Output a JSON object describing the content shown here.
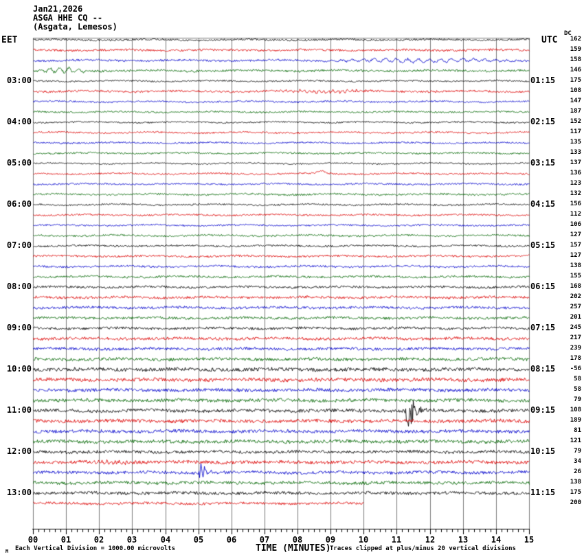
{
  "header": {
    "date": "Jan21,2026",
    "station": "ASGA HHE CQ --",
    "location": "(Asgata, Lemesos)"
  },
  "axes": {
    "left_label": "EET",
    "right_label": "UTC",
    "dc_label": "DC"
  },
  "footer": {
    "corner_mark": "M",
    "scale_note": "Each Vertical Division = 1000.00 microvolts",
    "axis_title": "TIME (MINUTES)",
    "clip_note": "Traces clipped at plus/minus 20 vertical divisions"
  },
  "chart_data": {
    "type": "line",
    "subtype": "helicorder-seismogram",
    "title": "ASGA HHE CQ --",
    "date": "Jan21,2026",
    "station_location": "(Asgata, Lemesos)",
    "xlabel": "TIME (MINUTES)",
    "x_range": [
      0,
      15
    ],
    "minutes_per_line": 15,
    "x_tick_labels": [
      "00",
      "01",
      "02",
      "03",
      "04",
      "05",
      "06",
      "07",
      "08",
      "09",
      "10",
      "11",
      "12",
      "13",
      "14",
      "15"
    ],
    "minor_ticks_per_interval": 5,
    "left_time_axis": "EET",
    "right_time_axis": "UTC",
    "trace_color_cycle": [
      "black",
      "red",
      "blue",
      "green"
    ],
    "palette": {
      "black": "#000000",
      "red": "#dd0000",
      "blue": "#0000cc",
      "green": "#006600",
      "grid": "#7a7a7a",
      "axis": "#000000"
    },
    "notes": [
      "Each Vertical Division = 1000.00 microvolts",
      "Traces clipped at plus/minus 20 vertical divisions"
    ],
    "traces": [
      {
        "eet": "",
        "utc": "",
        "dc": 162,
        "color": "black",
        "noise": 1.3,
        "events": []
      },
      {
        "eet": "",
        "utc": "",
        "dc": 159,
        "color": "red",
        "noise": 1.6,
        "events": []
      },
      {
        "eet": "",
        "utc": "",
        "dc": 158,
        "color": "blue",
        "noise": 1.4,
        "events": [
          {
            "type": "wave",
            "start": 8.3,
            "end": 14.9,
            "amp": 3.5,
            "freq": 3
          }
        ]
      },
      {
        "eet": "",
        "utc": "",
        "dc": 146,
        "color": "green",
        "noise": 1.6,
        "events": [
          {
            "type": "wave",
            "start": 0.05,
            "end": 1.8,
            "amp": 4.5,
            "freq": 3.5
          }
        ]
      },
      {
        "eet": "03:00",
        "utc": "01:15",
        "dc": 175,
        "color": "black",
        "noise": 1.1,
        "events": []
      },
      {
        "eet": "",
        "utc": "",
        "dc": 108,
        "color": "red",
        "noise": 1.5,
        "events": [
          {
            "type": "wave",
            "start": 6.9,
            "end": 10.6,
            "amp": 2.6,
            "freq": 7
          }
        ]
      },
      {
        "eet": "",
        "utc": "",
        "dc": 147,
        "color": "blue",
        "noise": 1.2,
        "events": []
      },
      {
        "eet": "",
        "utc": "",
        "dc": 187,
        "color": "green",
        "noise": 1.2,
        "events": []
      },
      {
        "eet": "04:00",
        "utc": "02:15",
        "dc": 152,
        "color": "black",
        "noise": 1.1,
        "events": []
      },
      {
        "eet": "",
        "utc": "",
        "dc": 117,
        "color": "red",
        "noise": 1.2,
        "events": []
      },
      {
        "eet": "",
        "utc": "",
        "dc": 135,
        "color": "blue",
        "noise": 1.2,
        "events": []
      },
      {
        "eet": "",
        "utc": "",
        "dc": 133,
        "color": "green",
        "noise": 1.2,
        "events": []
      },
      {
        "eet": "05:00",
        "utc": "03:15",
        "dc": 137,
        "color": "black",
        "noise": 1.0,
        "events": []
      },
      {
        "eet": "",
        "utc": "",
        "dc": 136,
        "color": "red",
        "noise": 1.2,
        "events": [
          {
            "type": "bump",
            "at": 8.7,
            "amp": 4,
            "width": 0.3
          }
        ]
      },
      {
        "eet": "",
        "utc": "",
        "dc": 123,
        "color": "blue",
        "noise": 1.2,
        "events": []
      },
      {
        "eet": "",
        "utc": "",
        "dc": 132,
        "color": "green",
        "noise": 1.3,
        "events": []
      },
      {
        "eet": "06:00",
        "utc": "04:15",
        "dc": 156,
        "color": "black",
        "noise": 1.1,
        "events": []
      },
      {
        "eet": "",
        "utc": "",
        "dc": 112,
        "color": "red",
        "noise": 1.2,
        "events": []
      },
      {
        "eet": "",
        "utc": "",
        "dc": 106,
        "color": "blue",
        "noise": 1.2,
        "events": []
      },
      {
        "eet": "",
        "utc": "",
        "dc": 127,
        "color": "green",
        "noise": 1.3,
        "events": []
      },
      {
        "eet": "07:00",
        "utc": "05:15",
        "dc": 157,
        "color": "black",
        "noise": 1.3,
        "events": []
      },
      {
        "eet": "",
        "utc": "",
        "dc": 127,
        "color": "red",
        "noise": 1.4,
        "events": []
      },
      {
        "eet": "",
        "utc": "",
        "dc": 138,
        "color": "blue",
        "noise": 1.4,
        "events": []
      },
      {
        "eet": "",
        "utc": "",
        "dc": 155,
        "color": "green",
        "noise": 1.5,
        "events": []
      },
      {
        "eet": "08:00",
        "utc": "06:15",
        "dc": 168,
        "color": "black",
        "noise": 1.6,
        "events": []
      },
      {
        "eet": "",
        "utc": "",
        "dc": 202,
        "color": "red",
        "noise": 1.8,
        "events": []
      },
      {
        "eet": "",
        "utc": "",
        "dc": 257,
        "color": "blue",
        "noise": 1.8,
        "events": []
      },
      {
        "eet": "",
        "utc": "",
        "dc": 201,
        "color": "green",
        "noise": 1.8,
        "events": []
      },
      {
        "eet": "09:00",
        "utc": "07:15",
        "dc": 245,
        "color": "black",
        "noise": 1.8,
        "events": []
      },
      {
        "eet": "",
        "utc": "",
        "dc": 217,
        "color": "red",
        "noise": 2.0,
        "events": []
      },
      {
        "eet": "",
        "utc": "",
        "dc": 239,
        "color": "blue",
        "noise": 2.0,
        "events": []
      },
      {
        "eet": "",
        "utc": "",
        "dc": 178,
        "color": "green",
        "noise": 2.2,
        "events": []
      },
      {
        "eet": "10:00",
        "utc": "08:15",
        "dc": -56,
        "color": "black",
        "noise": 2.6,
        "events": []
      },
      {
        "eet": "",
        "utc": "",
        "dc": 58,
        "color": "red",
        "noise": 2.6,
        "events": []
      },
      {
        "eet": "",
        "utc": "",
        "dc": 58,
        "color": "blue",
        "noise": 2.4,
        "events": []
      },
      {
        "eet": "",
        "utc": "",
        "dc": 79,
        "color": "green",
        "noise": 2.4,
        "events": []
      },
      {
        "eet": "11:00",
        "utc": "09:15",
        "dc": 108,
        "color": "black",
        "noise": 2.4,
        "events": [
          {
            "type": "spike",
            "at": 11.3,
            "amp": 38,
            "tail": 0.9
          }
        ]
      },
      {
        "eet": "",
        "utc": "",
        "dc": 189,
        "color": "red",
        "noise": 2.6,
        "events": []
      },
      {
        "eet": "",
        "utc": "",
        "dc": 81,
        "color": "blue",
        "noise": 2.4,
        "events": []
      },
      {
        "eet": "",
        "utc": "",
        "dc": 121,
        "color": "green",
        "noise": 2.4,
        "events": []
      },
      {
        "eet": "12:00",
        "utc": "10:15",
        "dc": 79,
        "color": "black",
        "noise": 2.2,
        "events": []
      },
      {
        "eet": "",
        "utc": "",
        "dc": 34,
        "color": "red",
        "noise": 2.4,
        "events": [
          {
            "type": "wave",
            "start": 1.4,
            "end": 3.6,
            "amp": 2.0,
            "freq": 8
          }
        ]
      },
      {
        "eet": "",
        "utc": "",
        "dc": 26,
        "color": "blue",
        "noise": 2.2,
        "events": [
          {
            "type": "spike",
            "at": 5.05,
            "amp": 17,
            "tail": 0.65
          }
        ]
      },
      {
        "eet": "",
        "utc": "",
        "dc": 138,
        "color": "green",
        "noise": 2.2,
        "events": []
      },
      {
        "eet": "13:00",
        "utc": "11:15",
        "dc": 175,
        "color": "black",
        "noise": 2.2,
        "events": []
      },
      {
        "eet": "",
        "utc": "",
        "dc": 200,
        "color": "red",
        "noise": 1.8,
        "end": 10.0,
        "events": []
      }
    ]
  }
}
